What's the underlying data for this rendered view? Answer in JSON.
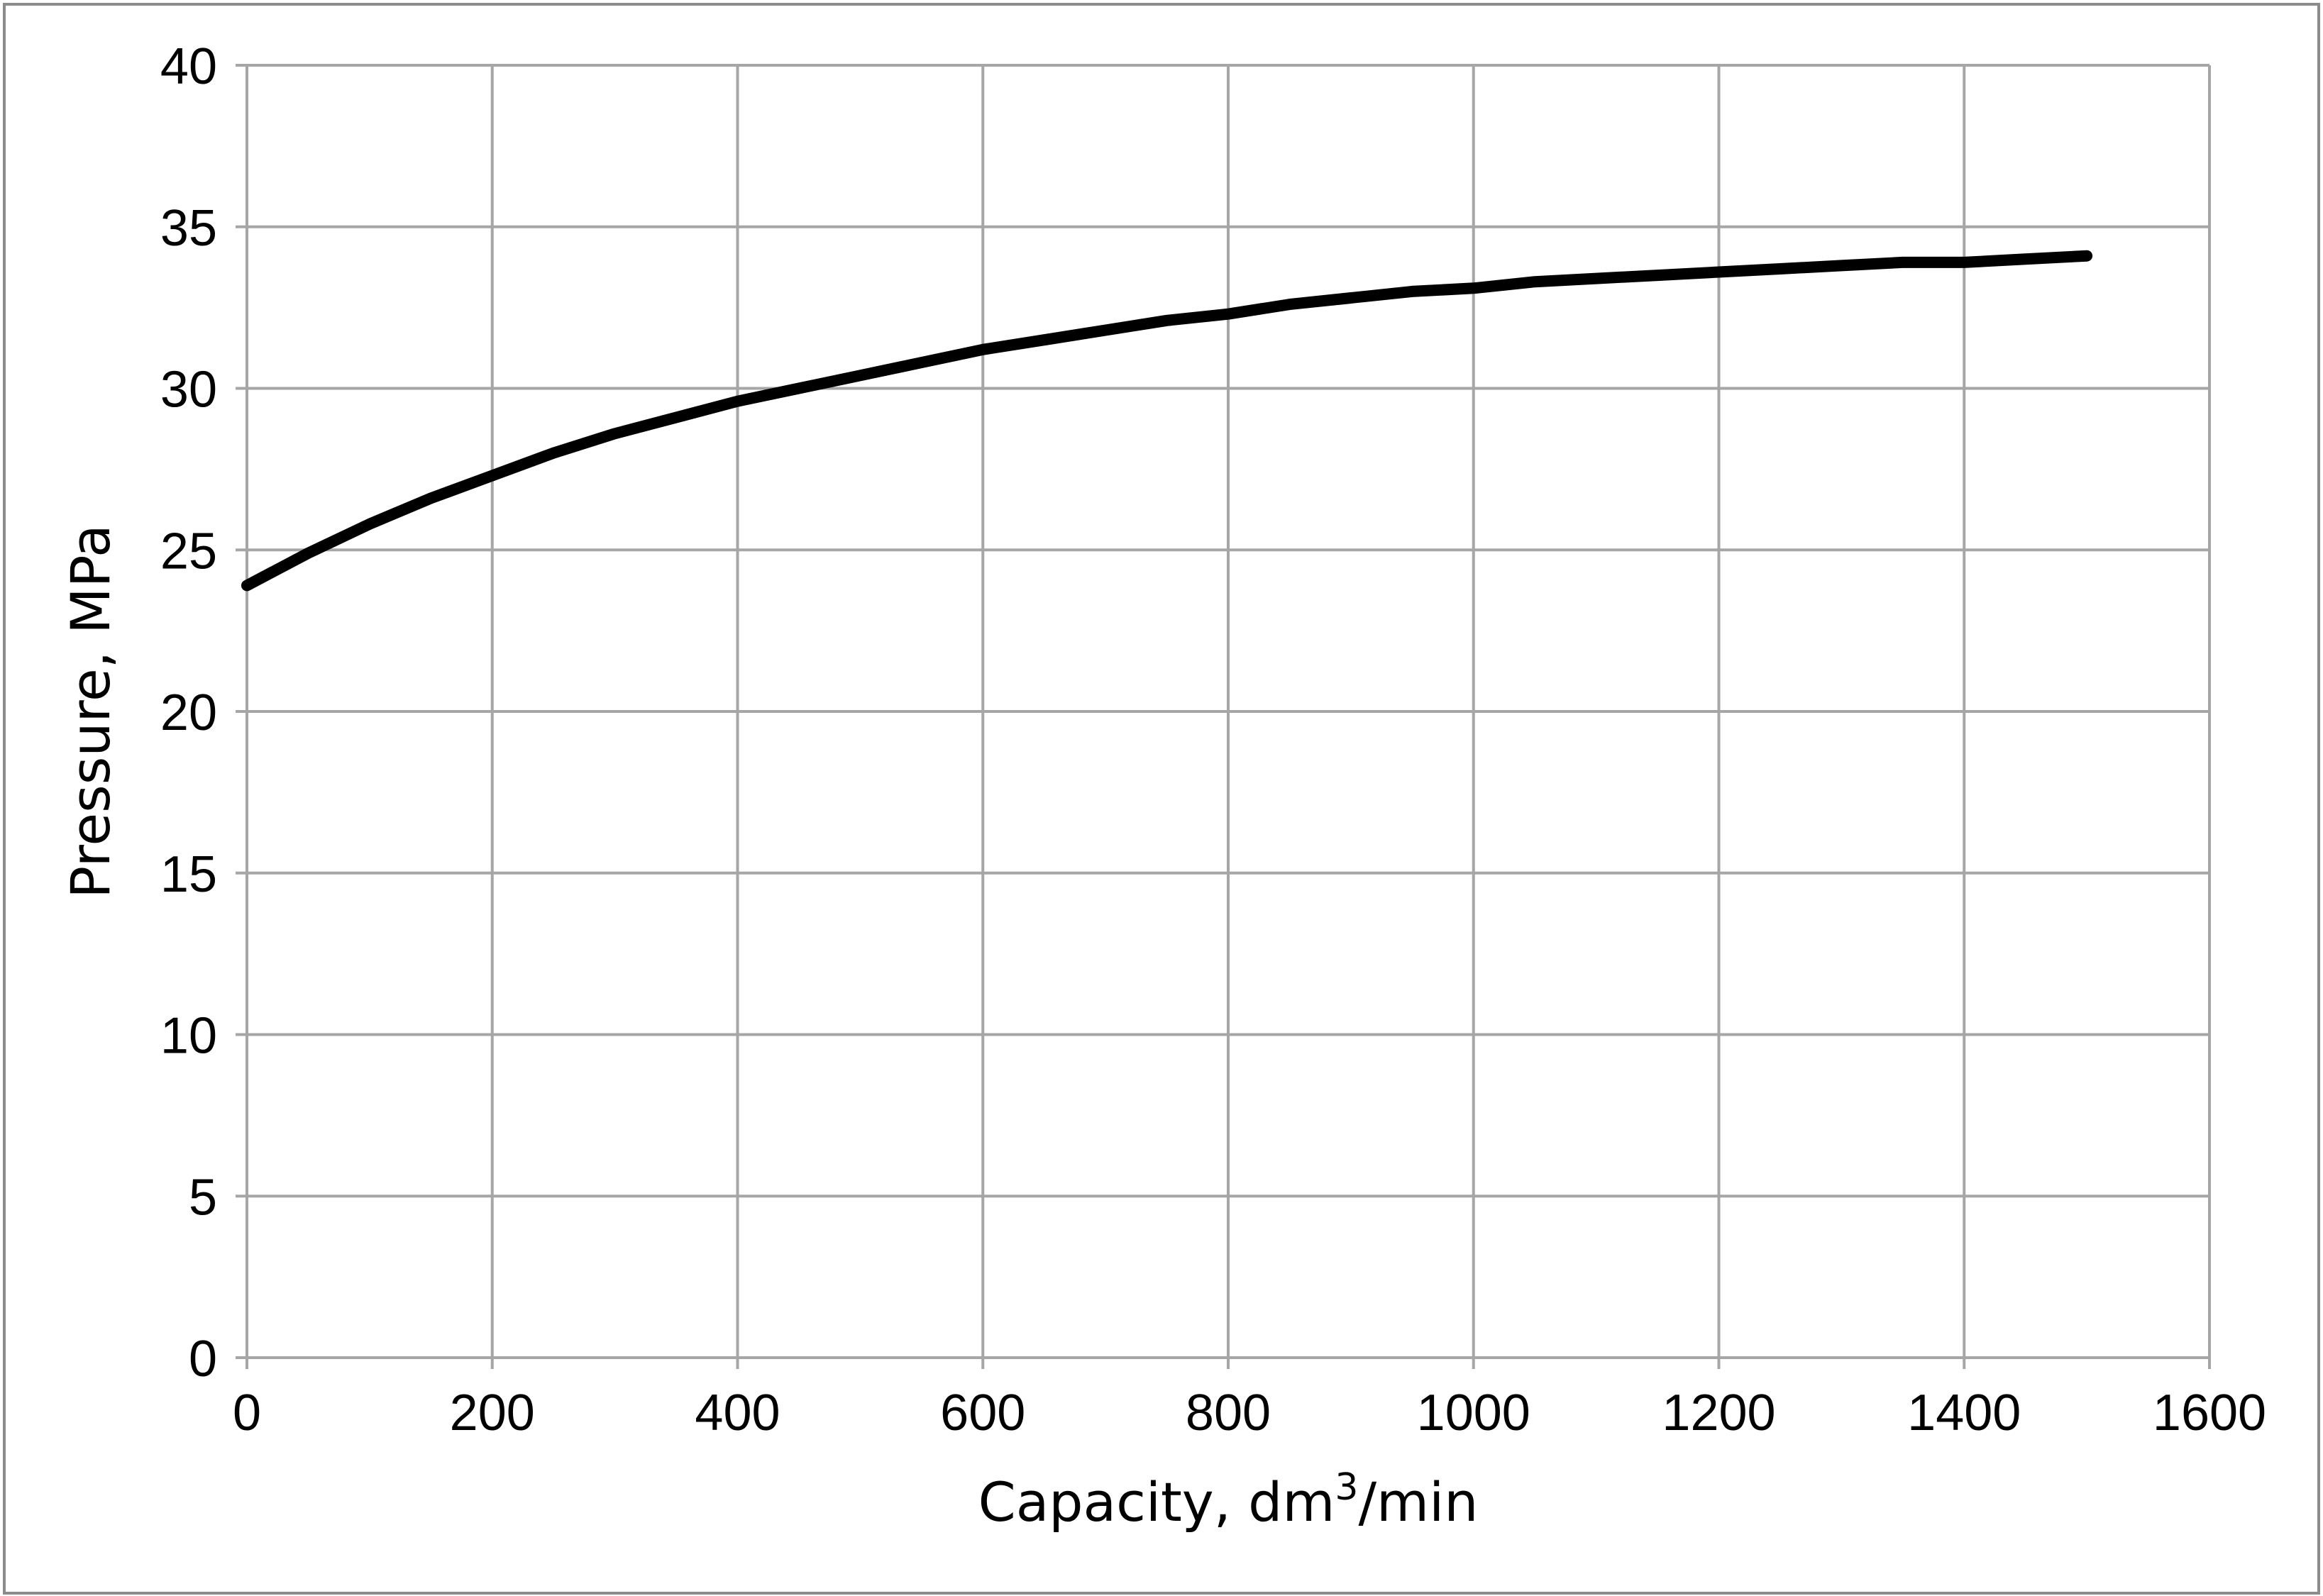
{
  "chart_data": {
    "type": "line",
    "title": "",
    "xlabel": "Capacity, dm",
    "xlabel_sup": "3",
    "xlabel_suffix": "/min",
    "ylabel": "Pressure, MPa",
    "xlim": [
      0,
      1600
    ],
    "ylim": [
      0,
      40
    ],
    "x_ticks": [
      "0",
      "200",
      "400",
      "600",
      "800",
      "1000",
      "1200",
      "1400",
      "1600"
    ],
    "y_ticks": [
      "0",
      "5",
      "10",
      "15",
      "20",
      "25",
      "30",
      "35",
      "40"
    ],
    "grid": true,
    "legend": "none",
    "series": [
      {
        "color": "#000000",
        "x": [
          0,
          50,
          100,
          150,
          200,
          250,
          300,
          350,
          400,
          450,
          500,
          550,
          600,
          650,
          700,
          750,
          800,
          850,
          900,
          950,
          1000,
          1050,
          1100,
          1150,
          1200,
          1250,
          1300,
          1350,
          1400,
          1450,
          1500
        ],
        "y": [
          23.9,
          24.9,
          25.8,
          26.6,
          27.3,
          28.0,
          28.6,
          29.1,
          29.6,
          30.0,
          30.4,
          30.8,
          31.2,
          31.5,
          31.8,
          32.1,
          32.3,
          32.6,
          32.8,
          33.0,
          33.1,
          33.3,
          33.4,
          33.5,
          33.6,
          33.7,
          33.8,
          33.9,
          33.9,
          34.0,
          34.1
        ]
      }
    ]
  },
  "colors": {
    "grid": "#a6a6a6",
    "frame": "#8c8c8c",
    "line": "#000000"
  }
}
